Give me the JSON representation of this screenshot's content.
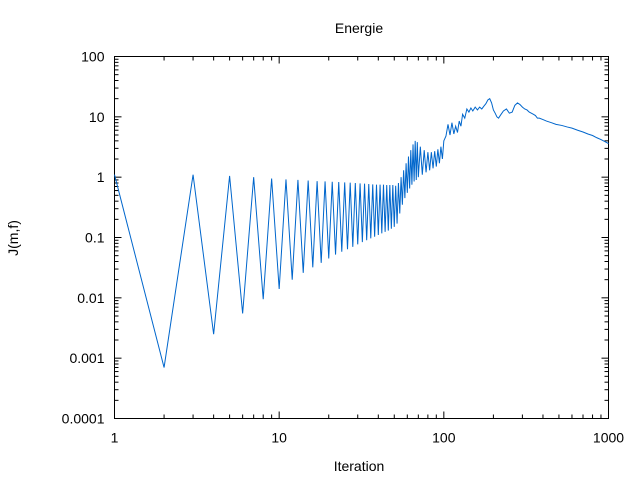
{
  "chart_data": {
    "type": "line",
    "title": "Energie",
    "xlabel": "Iteration",
    "ylabel": "J(m,f)",
    "xscale": "log",
    "yscale": "log",
    "xlim": [
      1,
      1000
    ],
    "ylim": [
      0.0001,
      100
    ],
    "grid": false,
    "legend": "none",
    "x_ticks": [
      {
        "value": 1,
        "label": "1"
      },
      {
        "value": 10,
        "label": "10"
      },
      {
        "value": 100,
        "label": "100"
      },
      {
        "value": 1000,
        "label": "1000"
      }
    ],
    "y_ticks": [
      {
        "value": 0.0001,
        "label": "0.0001"
      },
      {
        "value": 0.001,
        "label": "0.001"
      },
      {
        "value": 0.01,
        "label": "0.01"
      },
      {
        "value": 0.1,
        "label": "0.1"
      },
      {
        "value": 1,
        "label": "1"
      },
      {
        "value": 10,
        "label": "10"
      },
      {
        "value": 100,
        "label": "100"
      }
    ],
    "series": [
      {
        "color": "#0066cc",
        "points": [
          [
            1,
            1.1
          ],
          [
            2,
            0.0007
          ],
          [
            3,
            1.1
          ],
          [
            4,
            0.0025
          ],
          [
            5,
            1.05
          ],
          [
            6,
            0.0055
          ],
          [
            7,
            1.0
          ],
          [
            8,
            0.0095
          ],
          [
            9,
            0.95
          ],
          [
            10,
            0.014
          ],
          [
            11,
            0.92
          ],
          [
            12,
            0.02
          ],
          [
            13,
            0.9
          ],
          [
            14,
            0.026
          ],
          [
            15,
            0.88
          ],
          [
            16,
            0.032
          ],
          [
            17,
            0.86
          ],
          [
            18,
            0.038
          ],
          [
            19,
            0.85
          ],
          [
            20,
            0.045
          ],
          [
            21,
            0.84
          ],
          [
            22,
            0.052
          ],
          [
            23,
            0.83
          ],
          [
            24,
            0.058
          ],
          [
            25,
            0.82
          ],
          [
            26,
            0.064
          ],
          [
            27,
            0.81
          ],
          [
            28,
            0.07
          ],
          [
            29,
            0.8
          ],
          [
            30,
            0.077
          ],
          [
            31,
            0.79
          ],
          [
            32,
            0.084
          ],
          [
            33,
            0.78
          ],
          [
            34,
            0.09
          ],
          [
            35,
            0.77
          ],
          [
            36,
            0.097
          ],
          [
            37,
            0.76
          ],
          [
            38,
            0.103
          ],
          [
            39,
            0.75
          ],
          [
            40,
            0.11
          ],
          [
            41,
            0.75
          ],
          [
            42,
            0.117
          ],
          [
            43,
            0.75
          ],
          [
            44,
            0.124
          ],
          [
            45,
            0.74
          ],
          [
            46,
            0.13
          ],
          [
            47,
            0.74
          ],
          [
            48,
            0.14
          ],
          [
            49,
            0.74
          ],
          [
            50,
            0.15
          ],
          [
            51,
            0.72
          ],
          [
            52,
            0.17
          ],
          [
            53,
            0.8
          ],
          [
            54,
            0.25
          ],
          [
            55,
            1.0
          ],
          [
            56,
            0.35
          ],
          [
            57,
            1.3
          ],
          [
            58,
            0.45
          ],
          [
            59,
            1.7
          ],
          [
            60,
            0.55
          ],
          [
            61,
            2.2
          ],
          [
            62,
            0.65
          ],
          [
            63,
            2.8
          ],
          [
            64,
            0.75
          ],
          [
            65,
            3.5
          ],
          [
            66,
            0.85
          ],
          [
            67,
            4.0
          ],
          [
            68,
            0.9
          ],
          [
            69,
            3.8
          ],
          [
            70,
            1.0
          ],
          [
            72,
            3.2
          ],
          [
            74,
            1.1
          ],
          [
            76,
            2.8
          ],
          [
            78,
            1.2
          ],
          [
            80,
            2.6
          ],
          [
            82,
            1.3
          ],
          [
            84,
            2.6
          ],
          [
            86,
            1.4
          ],
          [
            88,
            2.7
          ],
          [
            90,
            1.5
          ],
          [
            92,
            2.9
          ],
          [
            94,
            1.7
          ],
          [
            96,
            3.2
          ],
          [
            98,
            2.0
          ],
          [
            100,
            4.0
          ],
          [
            103,
            4.8
          ],
          [
            106,
            7.5
          ],
          [
            109,
            5.0
          ],
          [
            112,
            8.0
          ],
          [
            115,
            5.2
          ],
          [
            118,
            7.0
          ],
          [
            121,
            5.5
          ],
          [
            124,
            8.5
          ],
          [
            127,
            7.0
          ],
          [
            130,
            11.0
          ],
          [
            134,
            9.5
          ],
          [
            138,
            13.5
          ],
          [
            142,
            12.0
          ],
          [
            146,
            14.0
          ],
          [
            150,
            12.5
          ],
          [
            155,
            14.5
          ],
          [
            160,
            13.0
          ],
          [
            165,
            14.5
          ],
          [
            170,
            13.5
          ],
          [
            175,
            15.0
          ],
          [
            180,
            16.5
          ],
          [
            185,
            19.0
          ],
          [
            190,
            20.0
          ],
          [
            195,
            17.0
          ],
          [
            200,
            13.0
          ],
          [
            205,
            11.5
          ],
          [
            210,
            10.0
          ],
          [
            215,
            9.5
          ],
          [
            220,
            10.5
          ],
          [
            230,
            12.5
          ],
          [
            240,
            13.5
          ],
          [
            250,
            11.5
          ],
          [
            260,
            12.0
          ],
          [
            270,
            15.5
          ],
          [
            280,
            17.0
          ],
          [
            290,
            16.0
          ],
          [
            300,
            14.5
          ],
          [
            310,
            13.5
          ],
          [
            320,
            13.0
          ],
          [
            330,
            12.0
          ],
          [
            340,
            11.5
          ],
          [
            350,
            11.0
          ],
          [
            360,
            10.5
          ],
          [
            370,
            9.5
          ],
          [
            380,
            9.5
          ],
          [
            400,
            9.0
          ],
          [
            420,
            8.5
          ],
          [
            450,
            8.0
          ],
          [
            480,
            7.5
          ],
          [
            520,
            7.2
          ],
          [
            560,
            6.8
          ],
          [
            600,
            6.5
          ],
          [
            650,
            6.0
          ],
          [
            700,
            5.6
          ],
          [
            750,
            5.2
          ],
          [
            800,
            4.9
          ],
          [
            850,
            4.5
          ],
          [
            900,
            4.2
          ],
          [
            950,
            3.9
          ],
          [
            1000,
            3.6
          ]
        ]
      }
    ]
  }
}
